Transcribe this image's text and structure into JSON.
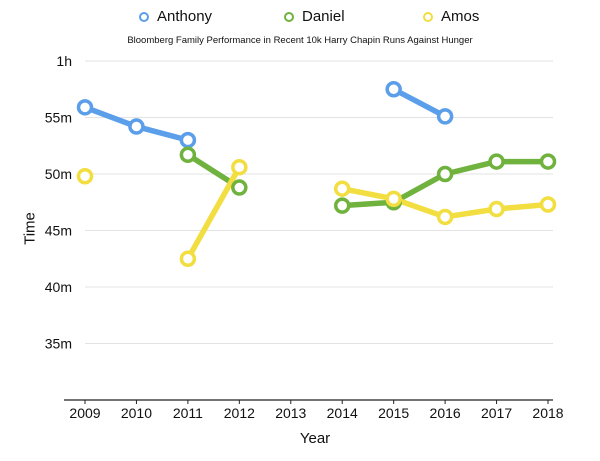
{
  "chart_data": {
    "type": "line",
    "title": "Bloomberg Family Performance in Recent 10k Harry Chapin Runs Against Hunger",
    "xlabel": "Year",
    "ylabel": "Time",
    "categories": [
      "2009",
      "2010",
      "2011",
      "2012",
      "2013",
      "2014",
      "2015",
      "2016",
      "2017",
      "2018"
    ],
    "y_ticks": [
      {
        "value": 35,
        "label": "35m"
      },
      {
        "value": 40,
        "label": "40m"
      },
      {
        "value": 45,
        "label": "45m"
      },
      {
        "value": 50,
        "label": "50m"
      },
      {
        "value": 55,
        "label": "55m"
      },
      {
        "value": 60,
        "label": "1h"
      }
    ],
    "ylim": [
      30,
      60
    ],
    "grid": true,
    "legend_position": "top",
    "series": [
      {
        "name": "Anthony",
        "color": "#5b9ee9",
        "values": [
          55.9,
          54.2,
          53.0,
          null,
          null,
          null,
          57.5,
          55.1,
          null,
          null
        ]
      },
      {
        "name": "Daniel",
        "color": "#6fb23e",
        "values": [
          null,
          null,
          51.7,
          48.8,
          null,
          47.2,
          47.5,
          50.0,
          51.1,
          51.1
        ]
      },
      {
        "name": "Amos",
        "color": "#f2de40",
        "values": [
          49.8,
          null,
          42.5,
          50.6,
          null,
          48.7,
          47.8,
          46.2,
          46.9,
          47.3
        ]
      }
    ]
  }
}
